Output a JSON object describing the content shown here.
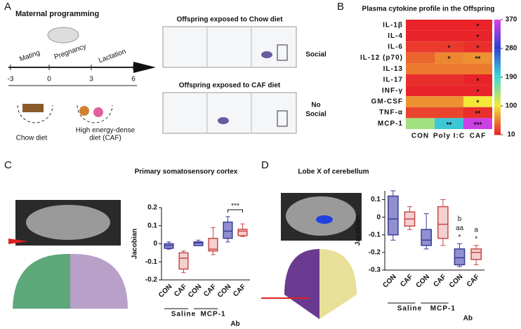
{
  "panels": {
    "a": {
      "label": "A",
      "title": "Maternal programming",
      "phases": [
        "Mating",
        "Pregnancy",
        "Lactation"
      ],
      "timeline_ticks": [
        "-3",
        "0",
        "3",
        "6"
      ],
      "diets": [
        [
          "Chow diet"
        ],
        [
          "High energy-dense",
          "diet (CAF)"
        ]
      ],
      "offspring": [
        {
          "title": "Offspring exposed to Chow diet",
          "condition": [
            "Social"
          ]
        },
        {
          "title": "Offspring exposed to CAF diet",
          "condition": [
            "No",
            "Social"
          ]
        }
      ]
    },
    "b": {
      "label": "B"
    },
    "c": {
      "label": "C"
    },
    "d": {
      "label": "D"
    }
  },
  "chart_data": [
    {
      "type": "heatmap",
      "title": "Plasma cytokine profile in the Offspring",
      "rows": [
        "IL-1β",
        "IL-4",
        "IL-6",
        "IL-12 (p70)",
        "IL-13",
        "IL-17",
        "INF-γ",
        "GM-CSF",
        "TNF-α",
        "MCP-1"
      ],
      "columns": [
        "CON",
        "Poly I:C",
        "CAF"
      ],
      "values": [
        [
          10,
          10,
          10
        ],
        [
          10,
          10,
          10
        ],
        [
          20,
          20,
          15
        ],
        [
          40,
          55,
          60
        ],
        [
          50,
          50,
          50
        ],
        [
          15,
          15,
          10
        ],
        [
          10,
          10,
          10
        ],
        [
          60,
          60,
          100
        ],
        [
          25,
          25,
          15
        ],
        [
          140,
          200,
          360
        ]
      ],
      "stars": [
        [
          null,
          null,
          "*"
        ],
        [
          null,
          null,
          "*"
        ],
        [
          null,
          "*",
          "*"
        ],
        [
          null,
          "*",
          "**"
        ],
        [
          null,
          null,
          null
        ],
        [
          null,
          null,
          "*"
        ],
        [
          null,
          null,
          "*"
        ],
        [
          null,
          null,
          "*"
        ],
        [
          null,
          null,
          "**"
        ],
        [
          null,
          "**",
          "***"
        ]
      ],
      "zlim": [
        10,
        370
      ],
      "zticks": [
        10,
        100,
        190,
        280,
        370
      ],
      "colors": [
        "#e8242a",
        "#f2e838",
        "#3ed8d8",
        "#3040d0",
        "#e040e8"
      ]
    },
    {
      "type": "box",
      "title": "Primary somatosensory cortex",
      "ylabel": "Jacobian",
      "categories": [
        "CON",
        "CAF",
        "CON",
        "CAF",
        "CON",
        "CAF"
      ],
      "groups": [
        "Saline",
        "MCP-1"
      ],
      "group_note": "Ab",
      "ylim": [
        -0.2,
        0.2
      ],
      "yticks": [
        -0.2,
        -0.1,
        0,
        0.1,
        0.2
      ],
      "boxes": [
        {
          "color": "#9090d0",
          "edge": "#3a3a98",
          "low": -0.03,
          "q1": -0.025,
          "median": -0.01,
          "q3": 0.0,
          "high": 0.01
        },
        {
          "color": "#f4d0d0",
          "edge": "#c84848",
          "low": -0.16,
          "q1": -0.14,
          "median": -0.08,
          "q3": -0.05,
          "high": -0.04
        },
        {
          "color": "#9090d0",
          "edge": "#3a3a98",
          "low": -0.01,
          "q1": -0.01,
          "median": 0.005,
          "q3": 0.01,
          "high": 0.02
        },
        {
          "color": "#f4d0d0",
          "edge": "#c84848",
          "low": -0.06,
          "q1": -0.04,
          "median": -0.03,
          "q3": 0.03,
          "high": 0.09
        },
        {
          "color": "#9090d0",
          "edge": "#3a3a98",
          "low": 0.01,
          "q1": 0.03,
          "median": 0.07,
          "q3": 0.12,
          "high": 0.15
        },
        {
          "color": "#f4d0d0",
          "edge": "#c84848",
          "low": 0.04,
          "q1": 0.045,
          "median": 0.07,
          "q3": 0.08,
          "high": 0.11
        }
      ],
      "bracket_label": "***"
    },
    {
      "type": "box",
      "title": "Lobe X of cerebellum",
      "ylabel": "Jacobian",
      "categories": [
        "CON",
        "CAF",
        "CON",
        "CAF",
        "CON",
        "CAF"
      ],
      "groups": [
        "Saline",
        "MCP-1"
      ],
      "group_note": "Ab",
      "ylim": [
        -0.3,
        0.15
      ],
      "yticks": [
        -0.3,
        -0.2,
        -0.1,
        0,
        0.1
      ],
      "boxes": [
        {
          "color": "#9090d0",
          "edge": "#3a3a98",
          "low": -0.13,
          "q1": -0.1,
          "median": -0.01,
          "q3": 0.12,
          "high": 0.15
        },
        {
          "color": "#f4d0d0",
          "edge": "#c84848",
          "low": -0.07,
          "q1": -0.05,
          "median": -0.01,
          "q3": 0.03,
          "high": 0.06
        },
        {
          "color": "#9090d0",
          "edge": "#3a3a98",
          "low": -0.18,
          "q1": -0.16,
          "median": -0.13,
          "q3": -0.07,
          "high": 0.02
        },
        {
          "color": "#f4d0d0",
          "edge": "#c84848",
          "low": -0.16,
          "q1": -0.12,
          "median": -0.04,
          "q3": 0.06,
          "high": 0.1
        },
        {
          "color": "#9090d0",
          "edge": "#3a3a98",
          "low": -0.28,
          "q1": -0.27,
          "median": -0.23,
          "q3": -0.18,
          "high": -0.15
        },
        {
          "color": "#f4d0d0",
          "edge": "#c84848",
          "low": -0.27,
          "q1": -0.24,
          "median": -0.2,
          "q3": -0.18,
          "high": -0.16
        }
      ],
      "box_labels": [
        null,
        null,
        null,
        null,
        [
          "b",
          "aa",
          "*"
        ],
        [
          "a",
          "*"
        ]
      ]
    }
  ]
}
